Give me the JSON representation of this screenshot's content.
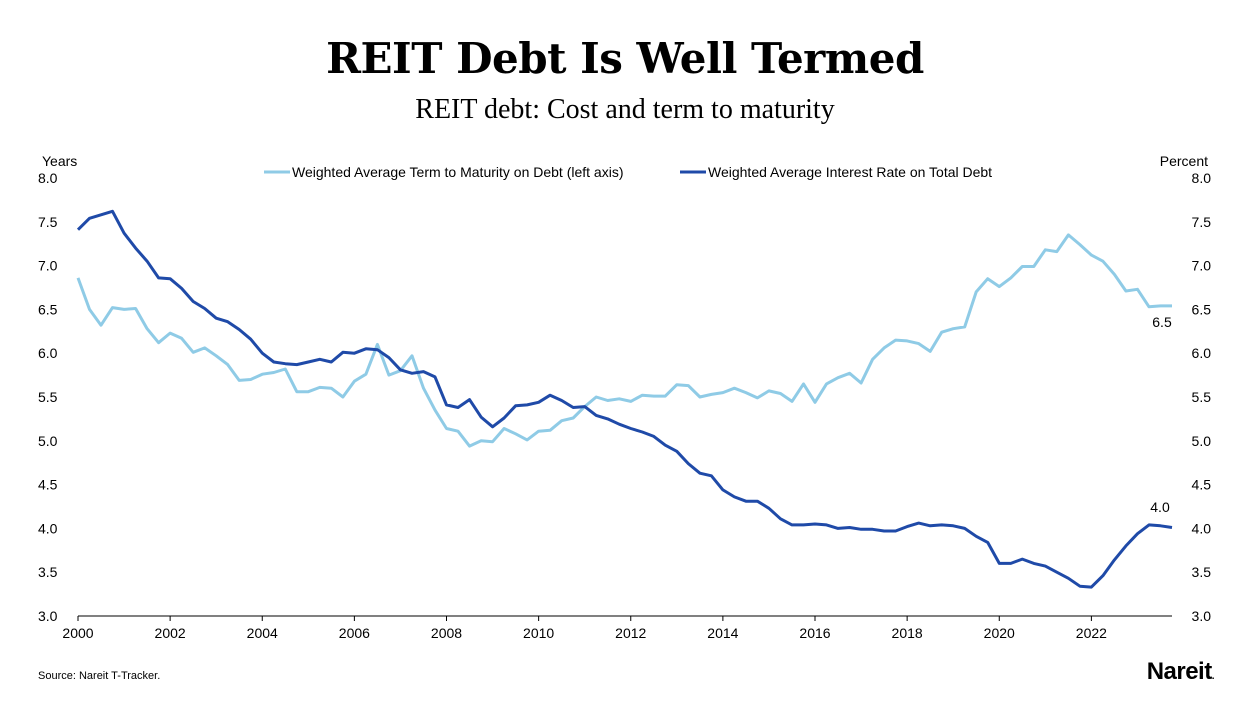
{
  "title": "REIT Debt Is Well Termed",
  "subtitle": "REIT debt: Cost and term to maturity",
  "source": "Source: Nareit T-Tracker.",
  "logo_text": "Nareit",
  "logo_mark": ".",
  "colors": {
    "term": "#8fcbe6",
    "rate": "#1f4aa8",
    "axis": "#000000"
  },
  "chart_data": {
    "type": "line",
    "left_axis_label": "Years",
    "right_axis_label": "Percent",
    "ylim": [
      3.0,
      8.0
    ],
    "yticks": [
      "3.0",
      "3.5",
      "4.0",
      "4.5",
      "5.0",
      "5.5",
      "6.0",
      "6.5",
      "7.0",
      "7.5",
      "8.0"
    ],
    "xlim": [
      2000,
      2023.75
    ],
    "xticks": [
      "2000",
      "2002",
      "2004",
      "2006",
      "2008",
      "2010",
      "2012",
      "2014",
      "2016",
      "2018",
      "2020",
      "2022"
    ],
    "legend_position": "top-center",
    "end_labels": [
      "6.5",
      "4.0"
    ],
    "series": [
      {
        "name": "Weighted Average Term to Maturity on Debt (left axis)",
        "color": "#8fcbe6",
        "x": [
          2000.0,
          2000.25,
          2000.5,
          2000.75,
          2001.0,
          2001.25,
          2001.5,
          2001.75,
          2002.0,
          2002.25,
          2002.5,
          2002.75,
          2003.0,
          2003.25,
          2003.5,
          2003.75,
          2004.0,
          2004.25,
          2004.5,
          2004.75,
          2005.0,
          2005.25,
          2005.5,
          2005.75,
          2006.0,
          2006.25,
          2006.5,
          2006.75,
          2007.0,
          2007.25,
          2007.5,
          2007.75,
          2008.0,
          2008.25,
          2008.5,
          2008.75,
          2009.0,
          2009.25,
          2009.5,
          2009.75,
          2010.0,
          2010.25,
          2010.5,
          2010.75,
          2011.0,
          2011.25,
          2011.5,
          2011.75,
          2012.0,
          2012.25,
          2012.5,
          2012.75,
          2013.0,
          2013.25,
          2013.5,
          2013.75,
          2014.0,
          2014.25,
          2014.5,
          2014.75,
          2015.0,
          2015.25,
          2015.5,
          2015.75,
          2016.0,
          2016.25,
          2016.5,
          2016.75,
          2017.0,
          2017.25,
          2017.5,
          2017.75,
          2018.0,
          2018.25,
          2018.5,
          2018.75,
          2019.0,
          2019.25,
          2019.5,
          2019.75,
          2020.0,
          2020.25,
          2020.5,
          2020.75,
          2021.0,
          2021.25,
          2021.5,
          2021.75,
          2022.0,
          2022.25,
          2022.5,
          2022.75,
          2023.0,
          2023.25,
          2023.5,
          2023.75
        ],
        "values": [
          6.86,
          6.5,
          6.32,
          6.52,
          6.5,
          6.51,
          6.28,
          6.12,
          6.23,
          6.17,
          6.01,
          6.06,
          5.97,
          5.87,
          5.69,
          5.7,
          5.76,
          5.78,
          5.82,
          5.56,
          5.56,
          5.61,
          5.6,
          5.5,
          5.68,
          5.76,
          6.1,
          5.75,
          5.8,
          5.97,
          5.6,
          5.35,
          5.14,
          5.11,
          4.94,
          5.0,
          4.99,
          5.14,
          5.08,
          5.01,
          5.11,
          5.12,
          5.23,
          5.26,
          5.39,
          5.5,
          5.46,
          5.48,
          5.45,
          5.52,
          5.51,
          5.51,
          5.64,
          5.63,
          5.5,
          5.53,
          5.55,
          5.6,
          5.55,
          5.49,
          5.57,
          5.54,
          5.45,
          5.65,
          5.44,
          5.65,
          5.72,
          5.77,
          5.66,
          5.93,
          6.06,
          6.15,
          6.14,
          6.11,
          6.02,
          6.24,
          6.28,
          6.3,
          6.7,
          6.85,
          6.76,
          6.86,
          6.99,
          6.99,
          7.18,
          7.16,
          7.35,
          7.24,
          7.12,
          7.05,
          6.9,
          6.71,
          6.73,
          6.53,
          6.54,
          6.54
        ]
      },
      {
        "name": "Weighted Average Interest Rate on Total Debt",
        "color": "#1f4aa8",
        "x": [
          2000.0,
          2000.25,
          2000.5,
          2000.75,
          2001.0,
          2001.25,
          2001.5,
          2001.75,
          2002.0,
          2002.25,
          2002.5,
          2002.75,
          2003.0,
          2003.25,
          2003.5,
          2003.75,
          2004.0,
          2004.25,
          2004.5,
          2004.75,
          2005.0,
          2005.25,
          2005.5,
          2005.75,
          2006.0,
          2006.25,
          2006.5,
          2006.75,
          2007.0,
          2007.25,
          2007.5,
          2007.75,
          2008.0,
          2008.25,
          2008.5,
          2008.75,
          2009.0,
          2009.25,
          2009.5,
          2009.75,
          2010.0,
          2010.25,
          2010.5,
          2010.75,
          2011.0,
          2011.25,
          2011.5,
          2011.75,
          2012.0,
          2012.25,
          2012.5,
          2012.75,
          2013.0,
          2013.25,
          2013.5,
          2013.75,
          2014.0,
          2014.25,
          2014.5,
          2014.75,
          2015.0,
          2015.25,
          2015.5,
          2015.75,
          2016.0,
          2016.25,
          2016.5,
          2016.75,
          2017.0,
          2017.25,
          2017.5,
          2017.75,
          2018.0,
          2018.25,
          2018.5,
          2018.75,
          2019.0,
          2019.25,
          2019.5,
          2019.75,
          2020.0,
          2020.25,
          2020.5,
          2020.75,
          2021.0,
          2021.25,
          2021.5,
          2021.75,
          2022.0,
          2022.25,
          2022.5,
          2022.75,
          2023.0,
          2023.25,
          2023.5,
          2023.75
        ],
        "values": [
          7.41,
          7.54,
          7.58,
          7.62,
          7.37,
          7.2,
          7.05,
          6.86,
          6.85,
          6.74,
          6.59,
          6.51,
          6.4,
          6.36,
          6.27,
          6.16,
          6.0,
          5.9,
          5.88,
          5.87,
          5.9,
          5.93,
          5.9,
          6.01,
          6.0,
          6.05,
          6.04,
          5.95,
          5.81,
          5.77,
          5.79,
          5.73,
          5.41,
          5.38,
          5.47,
          5.27,
          5.16,
          5.26,
          5.4,
          5.41,
          5.44,
          5.52,
          5.46,
          5.38,
          5.39,
          5.29,
          5.25,
          5.19,
          5.14,
          5.1,
          5.05,
          4.95,
          4.88,
          4.74,
          4.63,
          4.6,
          4.44,
          4.36,
          4.31,
          4.31,
          4.23,
          4.11,
          4.04,
          4.04,
          4.05,
          4.04,
          4.0,
          4.01,
          3.99,
          3.99,
          3.97,
          3.97,
          4.02,
          4.06,
          4.03,
          4.04,
          4.03,
          4.0,
          3.91,
          3.84,
          3.6,
          3.6,
          3.65,
          3.6,
          3.57,
          3.5,
          3.43,
          3.34,
          3.33,
          3.46,
          3.64,
          3.8,
          3.94,
          4.04,
          4.03,
          4.01
        ]
      }
    ]
  }
}
